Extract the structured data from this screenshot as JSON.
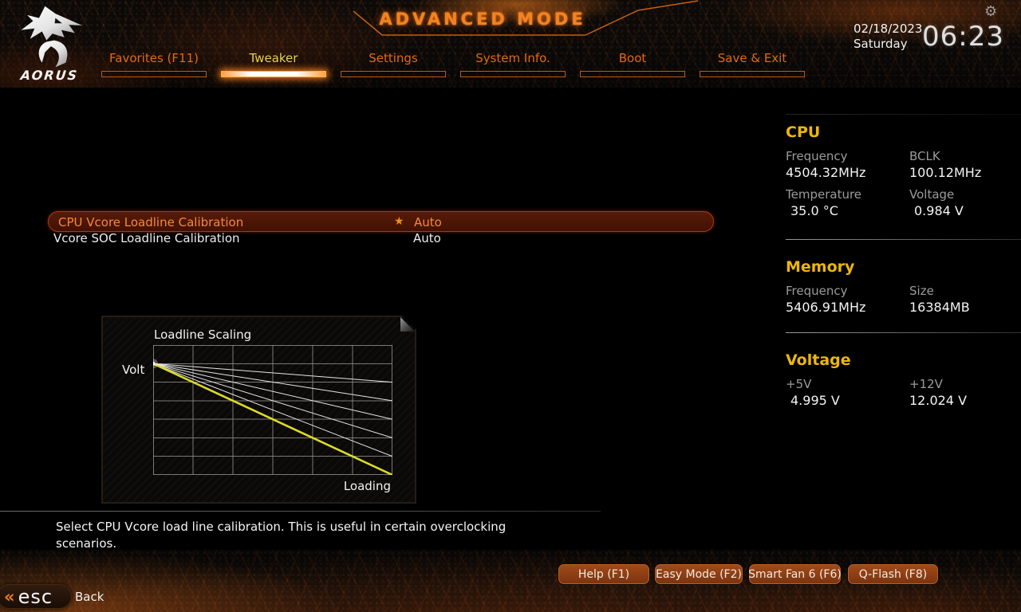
{
  "header": {
    "logo": "AORUS",
    "title": "ADVANCED MODE",
    "date": "02/18/2023",
    "weekday": "Saturday",
    "time": "06:23"
  },
  "icons": {
    "gear": "⚙",
    "star": "★",
    "chevron": "«"
  },
  "nav": {
    "tabs": [
      {
        "label": "Favorites (F11)",
        "active": false
      },
      {
        "label": "Tweaker",
        "active": true
      },
      {
        "label": "Settings",
        "active": false
      },
      {
        "label": "System Info.",
        "active": false
      },
      {
        "label": "Boot",
        "active": false
      },
      {
        "label": "Save & Exit",
        "active": false
      }
    ]
  },
  "settings": {
    "rows": [
      {
        "label": "CPU Vcore Loadline Calibration",
        "value": "Auto",
        "selected": true,
        "starred": true
      },
      {
        "label": "Vcore SOC Loadline Calibration",
        "value": "Auto",
        "selected": false,
        "starred": false
      }
    ]
  },
  "chart_data": {
    "type": "line",
    "title": "Loadline Scaling",
    "xlabel": "Loading",
    "ylabel": "Volt",
    "x_range": [
      0,
      6
    ],
    "y_range": [
      0,
      7
    ],
    "grid": {
      "cols": 6,
      "rows": 7,
      "visible": true,
      "color": "#8c8c8c"
    },
    "origin": [
      0,
      6
    ],
    "legend": false,
    "series": [
      {
        "name": "llc-line-1",
        "color": "#e6e6e6",
        "width": 1,
        "points": [
          [
            0,
            6
          ],
          [
            6,
            5
          ]
        ]
      },
      {
        "name": "llc-line-2",
        "color": "#e6e6e6",
        "width": 1,
        "points": [
          [
            0,
            6
          ],
          [
            6,
            4
          ]
        ]
      },
      {
        "name": "llc-line-3",
        "color": "#e6e6e6",
        "width": 1,
        "points": [
          [
            0,
            6
          ],
          [
            6,
            3
          ]
        ]
      },
      {
        "name": "llc-line-4",
        "color": "#e6e6e6",
        "width": 1,
        "points": [
          [
            0,
            6
          ],
          [
            6,
            2
          ]
        ]
      },
      {
        "name": "llc-line-5",
        "color": "#e6e6e6",
        "width": 1,
        "points": [
          [
            0,
            6
          ],
          [
            6,
            1
          ]
        ]
      },
      {
        "name": "llc-line-selected",
        "color": "#dcdc28",
        "width": 2.6,
        "points": [
          [
            0,
            6
          ],
          [
            6,
            0
          ]
        ]
      }
    ]
  },
  "sidebar": {
    "sections": [
      {
        "title": "CPU",
        "items": [
          {
            "label": "Frequency",
            "value": "4504.32MHz"
          },
          {
            "label": "BCLK",
            "value": "100.12MHz"
          },
          {
            "label": "Temperature",
            "value": "35.0 °C"
          },
          {
            "label": "Voltage",
            "value": "0.984 V"
          }
        ]
      },
      {
        "title": "Memory",
        "items": [
          {
            "label": "Frequency",
            "value": "5406.91MHz"
          },
          {
            "label": "Size",
            "value": "16384MB"
          }
        ]
      },
      {
        "title": "Voltage",
        "items": [
          {
            "label": "+5V",
            "value": "4.995 V"
          },
          {
            "label": "+12V",
            "value": "12.024 V"
          }
        ]
      }
    ]
  },
  "help": {
    "text": "Select CPU Vcore load line calibration. This is useful in certain overclocking scenarios."
  },
  "footer": {
    "buttons": [
      {
        "label": "Help (F1)"
      },
      {
        "label": "Easy Mode (F2)"
      },
      {
        "label": "Smart Fan 6 (F6)"
      },
      {
        "label": "Q-Flash (F8)"
      }
    ],
    "esc_key": "esc",
    "back_label": "Back"
  },
  "colors": {
    "accent_orange": "#e8711f",
    "active_tab_yellow": "#e7d24a",
    "sidebar_gold": "#edb70a",
    "selected_row_bg": "#4f1706",
    "selected_row_border": "#a33c10",
    "selected_row_text": "#f6883a",
    "button_rust": "#8a3c12",
    "chart_highlight": "#dcdc28",
    "value_white": "#f4f4f4",
    "label_gray": "#9b9b9b"
  }
}
